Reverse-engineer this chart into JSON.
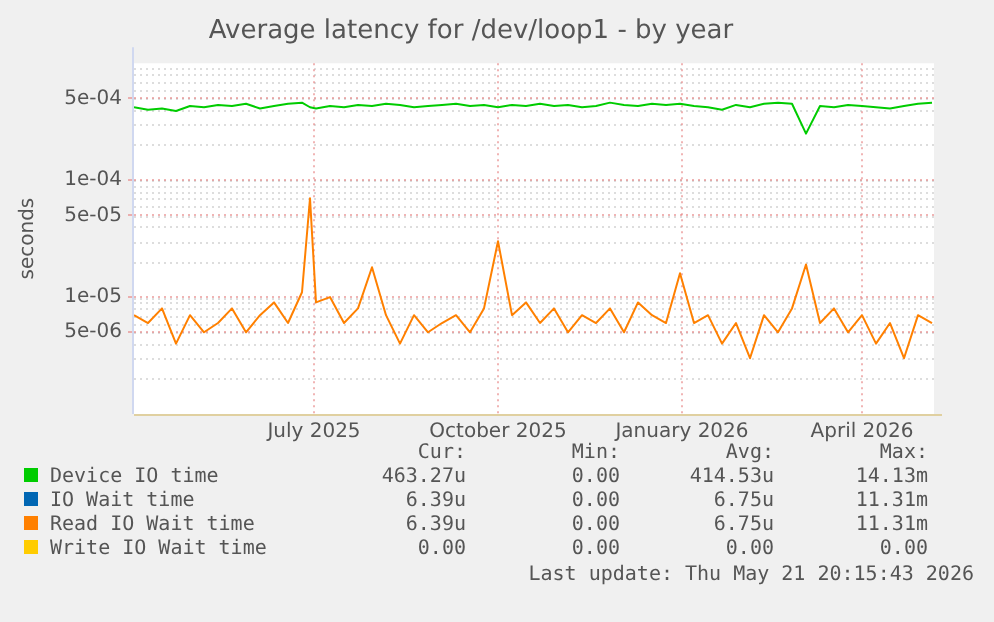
{
  "chart_data": {
    "type": "line",
    "title": "Average latency for /dev/loop1 - by year",
    "ylabel": "seconds",
    "log": "y",
    "grid": true,
    "legend": "bottom",
    "marker": "none",
    "line_style": "solid",
    "x": [
      "2025-04-02",
      "2025-04-09",
      "2025-04-16",
      "2025-04-23",
      "2025-04-30",
      "2025-05-07",
      "2025-05-14",
      "2025-05-21",
      "2025-05-28",
      "2025-06-04",
      "2025-06-11",
      "2025-06-18",
      "2025-06-25",
      "2025-06-29",
      "2025-07-02",
      "2025-07-09",
      "2025-07-16",
      "2025-07-23",
      "2025-07-30",
      "2025-08-06",
      "2025-08-13",
      "2025-08-20",
      "2025-08-27",
      "2025-09-03",
      "2025-09-10",
      "2025-09-17",
      "2025-09-24",
      "2025-10-01",
      "2025-10-08",
      "2025-10-15",
      "2025-10-22",
      "2025-10-29",
      "2025-11-05",
      "2025-11-12",
      "2025-11-19",
      "2025-11-26",
      "2025-12-03",
      "2025-12-10",
      "2025-12-17",
      "2025-12-24",
      "2025-12-31",
      "2026-01-07",
      "2026-01-14",
      "2026-01-21",
      "2026-01-28",
      "2026-02-04",
      "2026-02-11",
      "2026-02-18",
      "2026-02-25",
      "2026-03-04",
      "2026-03-11",
      "2026-03-18",
      "2026-03-25",
      "2026-04-01",
      "2026-04-08",
      "2026-04-15",
      "2026-04-22",
      "2026-04-29",
      "2026-05-06"
    ],
    "xlim": [
      "2025-04-02",
      "2026-05-07"
    ],
    "xticks": [
      {
        "value": "2025-07-01",
        "label": "July 2025"
      },
      {
        "value": "2025-10-01",
        "label": "October 2025"
      },
      {
        "value": "2026-01-01",
        "label": "January 2026"
      },
      {
        "value": "2026-04-01",
        "label": "April 2026"
      }
    ],
    "ylim": [
      1e-06,
      0.001
    ],
    "yticks": [
      {
        "value": 5e-06,
        "label": "5e-06"
      },
      {
        "value": 1e-05,
        "label": "1e-05"
      },
      {
        "value": 5e-05,
        "label": "5e-05"
      },
      {
        "value": 0.0001,
        "label": "1e-04"
      },
      {
        "value": 0.0005,
        "label": "5e-04"
      }
    ],
    "series": [
      {
        "name": "Device IO time",
        "color": "#00cc00",
        "values": [
          0.00042,
          0.0004,
          0.00041,
          0.00039,
          0.00043,
          0.00042,
          0.00044,
          0.00043,
          0.00045,
          0.00041,
          0.00043,
          0.00045,
          0.00046,
          0.00042,
          0.00041,
          0.00043,
          0.00042,
          0.00044,
          0.00043,
          0.00045,
          0.00044,
          0.00042,
          0.00043,
          0.00044,
          0.00045,
          0.00043,
          0.00044,
          0.00042,
          0.00044,
          0.00043,
          0.00045,
          0.00043,
          0.00044,
          0.00042,
          0.00043,
          0.00046,
          0.00044,
          0.00043,
          0.00045,
          0.00044,
          0.00045,
          0.00043,
          0.00042,
          0.0004,
          0.00044,
          0.00042,
          0.00045,
          0.00046,
          0.00045,
          0.00025,
          0.00043,
          0.00042,
          0.00044,
          0.00043,
          0.00042,
          0.00041,
          0.00043,
          0.00045,
          0.00046
        ]
      },
      {
        "name": "IO Wait time",
        "color": "#0066b3",
        "values": [
          null,
          null,
          null,
          null,
          null,
          null,
          null,
          null,
          null,
          null,
          null,
          null,
          null,
          null,
          null,
          null,
          null,
          null,
          null,
          null,
          null,
          null,
          null,
          null,
          null,
          null,
          null,
          null,
          null,
          null,
          null,
          null,
          null,
          null,
          null,
          null,
          null,
          null,
          null,
          null,
          null,
          null,
          null,
          null,
          null,
          null,
          null,
          null,
          null,
          null,
          null,
          null,
          null,
          null,
          null,
          null,
          null,
          null,
          null
        ]
      },
      {
        "name": "Read IO Wait time",
        "color": "#ff8000",
        "values": [
          7e-06,
          6e-06,
          8e-06,
          4e-06,
          7e-06,
          5e-06,
          6e-06,
          8e-06,
          5e-06,
          7e-06,
          9e-06,
          6e-06,
          1.1e-05,
          7e-05,
          9e-06,
          1e-05,
          6e-06,
          8e-06,
          1.8e-05,
          7e-06,
          4e-06,
          7e-06,
          5e-06,
          6e-06,
          7e-06,
          5e-06,
          8e-06,
          3e-05,
          7e-06,
          9e-06,
          6e-06,
          8e-06,
          5e-06,
          7e-06,
          6e-06,
          8e-06,
          5e-06,
          9e-06,
          7e-06,
          6e-06,
          1.6e-05,
          6e-06,
          7e-06,
          4e-06,
          6e-06,
          3e-06,
          7e-06,
          5e-06,
          8e-06,
          1.9e-05,
          6e-06,
          8e-06,
          5e-06,
          7e-06,
          4e-06,
          6e-06,
          3e-06,
          7e-06,
          6e-06
        ]
      },
      {
        "name": "Write IO Wait time",
        "color": "#ffcc00",
        "values": [
          null,
          null,
          null,
          null,
          null,
          null,
          null,
          null,
          null,
          null,
          null,
          null,
          null,
          null,
          null,
          null,
          null,
          null,
          null,
          null,
          null,
          null,
          null,
          null,
          null,
          null,
          null,
          null,
          null,
          null,
          null,
          null,
          null,
          null,
          null,
          null,
          null,
          null,
          null,
          null,
          null,
          null,
          null,
          null,
          null,
          null,
          null,
          null,
          null,
          null,
          null,
          null,
          null,
          null,
          null,
          null,
          null,
          null,
          null
        ]
      }
    ],
    "annotations": [
      "Cur:",
      "Min:",
      "Avg:",
      "Max:",
      "463.27u",
      "0.00",
      "414.53u",
      "14.13m",
      "6.39u",
      "0.00",
      "6.75u",
      "11.31m",
      "6.39u",
      "0.00",
      "6.75u",
      "11.31m",
      "0.00",
      "0.00",
      "0.00",
      "0.00",
      "Last update: Thu May 21 20:15:43 2026"
    ]
  }
}
